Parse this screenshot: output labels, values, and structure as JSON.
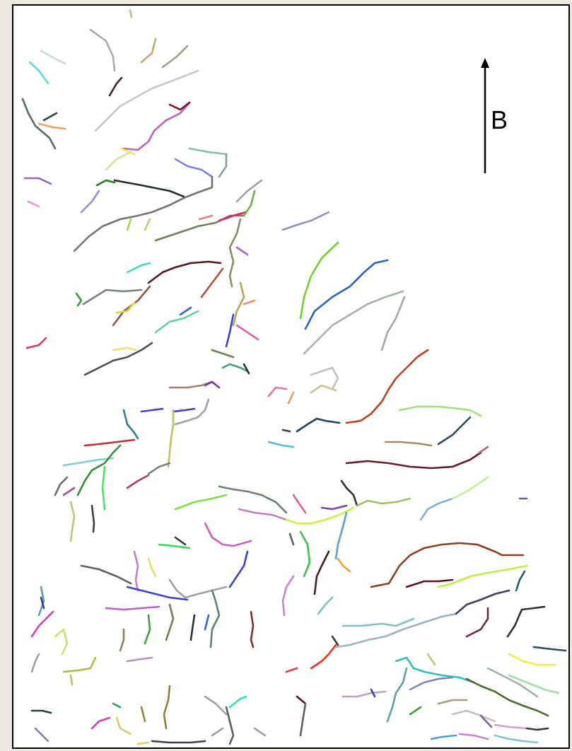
{
  "north_arrow": {
    "label": "B"
  }
}
